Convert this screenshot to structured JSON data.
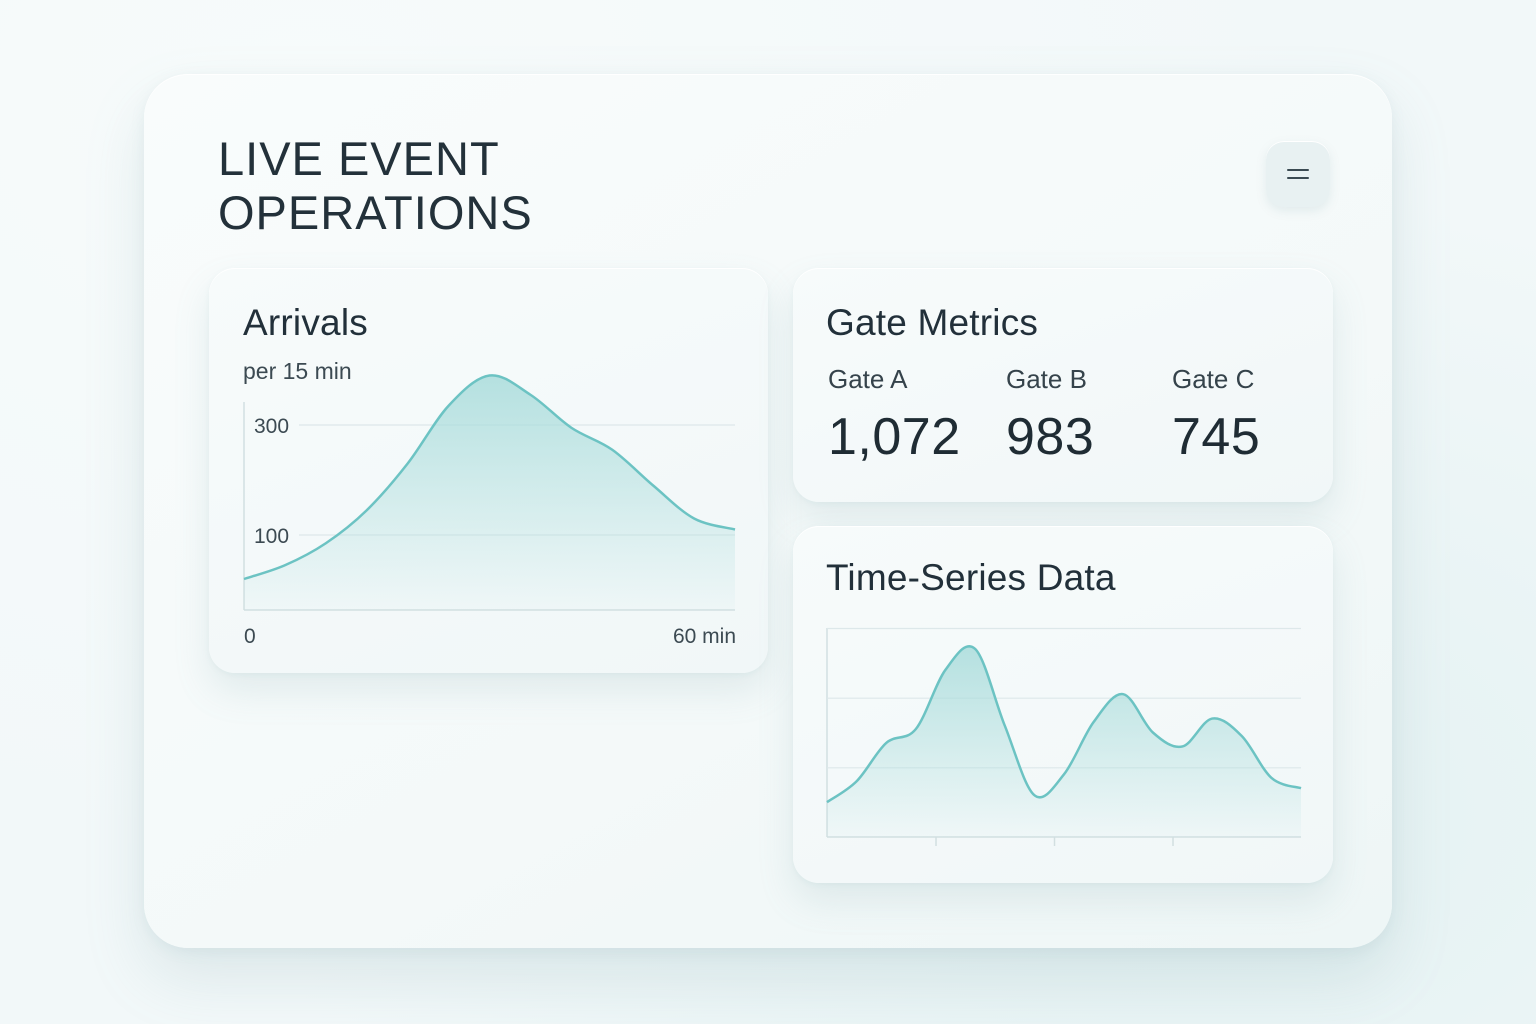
{
  "page": {
    "title": "LIVE EVENT\nOPERATIONS"
  },
  "menu": {
    "icon": "menu-icon"
  },
  "arrivals": {
    "title": "Arrivals",
    "subtitle": "per 15 min"
  },
  "gate_metrics": {
    "title": "Gate Metrics",
    "gates": [
      {
        "label": "Gate A",
        "value": "1,072"
      },
      {
        "label": "Gate B",
        "value": "983"
      },
      {
        "label": "Gate C",
        "value": "745"
      }
    ]
  },
  "time_series": {
    "title": "Time-Series Data"
  },
  "colors": {
    "accent": "#6cc3c3",
    "fill": "#a9dcdb"
  },
  "chart_data": [
    {
      "type": "area",
      "title": "Arrivals",
      "subtitle": "per 15 min",
      "x": [
        0,
        5,
        10,
        15,
        20,
        25,
        30,
        35,
        40,
        45,
        50,
        55,
        60
      ],
      "values": [
        20,
        45,
        85,
        145,
        230,
        335,
        390,
        355,
        295,
        255,
        190,
        130,
        110
      ],
      "y_tick_labels": [
        "100",
        "300"
      ],
      "x_tick_labels": [
        "0",
        "60 min"
      ],
      "ylim": [
        0,
        400
      ],
      "grid": true
    },
    {
      "type": "area",
      "title": "Time-Series Data",
      "x": [
        0,
        1,
        2,
        3,
        4,
        5,
        6,
        7,
        8,
        9,
        10,
        11,
        12,
        13,
        14,
        15,
        16
      ],
      "values": [
        1.0,
        1.6,
        2.7,
        3.1,
        4.8,
        5.4,
        3.2,
        1.2,
        1.8,
        3.3,
        4.1,
        3.0,
        2.6,
        3.4,
        2.9,
        1.7,
        1.4
      ],
      "ylim": [
        0,
        6
      ],
      "grid": true
    }
  ]
}
